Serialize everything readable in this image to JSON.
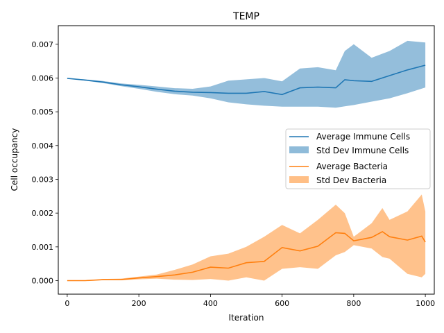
{
  "chart_data": {
    "type": "line",
    "title": "TEMP",
    "xlabel": "Iteration",
    "ylabel": "Cell occupancy",
    "xlim": [
      -25,
      1025
    ],
    "ylim": [
      -0.0004,
      0.00755
    ],
    "x_ticks": [
      0,
      200,
      400,
      600,
      800,
      1000
    ],
    "x_tick_labels": [
      "0",
      "200",
      "400",
      "600",
      "800",
      "1000"
    ],
    "y_ticks": [
      0,
      0.001,
      0.002,
      0.003,
      0.004,
      0.005,
      0.006,
      0.007
    ],
    "y_tick_labels": [
      "0.000",
      "0.001",
      "0.002",
      "0.003",
      "0.004",
      "0.005",
      "0.006",
      "0.007"
    ],
    "grid": false,
    "legend_position": "center-right",
    "legend": [
      "Average Immune Cells",
      "Std Dev Immune Cells",
      "Average Bacteria",
      "Std Dev Bacteria"
    ],
    "series": [
      {
        "name": "Average Immune Cells",
        "std_name": "Std Dev Immune Cells",
        "color": "#1f77b4",
        "fill_color": "#1f77b4",
        "x": [
          0,
          50,
          100,
          150,
          200,
          250,
          300,
          350,
          400,
          450,
          500,
          550,
          600,
          650,
          700,
          750,
          775,
          800,
          850,
          900,
          950,
          1000
        ],
        "mean": [
          0.00599,
          0.00594,
          0.00588,
          0.0058,
          0.00574,
          0.00567,
          0.00561,
          0.00558,
          0.00557,
          0.00555,
          0.00555,
          0.0056,
          0.00551,
          0.00571,
          0.00573,
          0.00571,
          0.00595,
          0.00592,
          0.0059,
          0.00607,
          0.00624,
          0.00638
        ],
        "upper": [
          0.00599,
          0.00596,
          0.00591,
          0.00584,
          0.0058,
          0.00575,
          0.0057,
          0.00568,
          0.00575,
          0.00592,
          0.00596,
          0.006,
          0.0059,
          0.00628,
          0.00632,
          0.00623,
          0.0068,
          0.007,
          0.0066,
          0.0068,
          0.0071,
          0.00705
        ],
        "lower": [
          0.00599,
          0.00592,
          0.00585,
          0.00576,
          0.00568,
          0.00559,
          0.00552,
          0.00548,
          0.0054,
          0.00528,
          0.00522,
          0.00518,
          0.00515,
          0.00515,
          0.00515,
          0.00512,
          0.00516,
          0.0052,
          0.0053,
          0.0054,
          0.00555,
          0.00572
        ]
      },
      {
        "name": "Average Bacteria",
        "std_name": "Std Dev Bacteria",
        "color": "#ff7f0e",
        "fill_color": "#ff7f0e",
        "x": [
          0,
          50,
          100,
          150,
          200,
          250,
          300,
          350,
          400,
          450,
          500,
          550,
          600,
          650,
          700,
          750,
          775,
          800,
          850,
          880,
          900,
          950,
          990,
          1000
        ],
        "mean": [
          0.0,
          0.0,
          3e-05,
          3e-05,
          8e-05,
          0.00012,
          0.00017,
          0.00025,
          0.0004,
          0.00037,
          0.00053,
          0.00057,
          0.00098,
          0.00088,
          0.00102,
          0.00142,
          0.0014,
          0.00118,
          0.00128,
          0.00145,
          0.0013,
          0.0012,
          0.00132,
          0.00114
        ],
        "upper": [
          0.0,
          0.0,
          5e-05,
          6e-05,
          0.00012,
          0.00018,
          0.00032,
          0.00048,
          0.00072,
          0.0008,
          0.001,
          0.0013,
          0.00165,
          0.0014,
          0.0018,
          0.00225,
          0.002,
          0.0013,
          0.0017,
          0.00215,
          0.0018,
          0.00205,
          0.00255,
          0.00205
        ],
        "lower": [
          0.0,
          0.0,
          1e-05,
          1e-05,
          4e-05,
          6e-05,
          3e-05,
          2e-05,
          5e-05,
          0.0,
          0.0001,
          0.0,
          0.00035,
          0.0004,
          0.00035,
          0.00075,
          0.00085,
          0.00105,
          0.00095,
          0.0007,
          0.00065,
          0.0002,
          0.0001,
          0.0002
        ]
      }
    ]
  }
}
